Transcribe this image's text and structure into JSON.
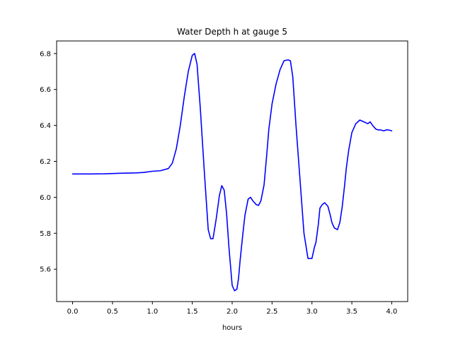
{
  "chart_data": {
    "type": "line",
    "title": "Water Depth h at gauge 5",
    "xlabel": "hours",
    "ylabel": "",
    "xlim": [
      -0.2,
      4.2
    ],
    "ylim": [
      5.42,
      6.87
    ],
    "xticks": [
      0.0,
      0.5,
      1.0,
      1.5,
      2.0,
      2.5,
      3.0,
      3.5,
      4.0
    ],
    "xtick_labels": [
      "0.0",
      "0.5",
      "1.0",
      "1.5",
      "2.0",
      "2.5",
      "3.0",
      "3.5",
      "4.0"
    ],
    "yticks": [
      5.6,
      5.8,
      6.0,
      6.2,
      6.4,
      6.6,
      6.8
    ],
    "ytick_labels": [
      "5.6",
      "5.8",
      "6.0",
      "6.2",
      "6.4",
      "6.6",
      "6.8"
    ],
    "grid": false,
    "legend": "none",
    "series": [
      {
        "color": "#0000ff",
        "x": [
          0.0,
          0.2,
          0.4,
          0.6,
          0.7,
          0.8,
          0.9,
          1.0,
          1.1,
          1.2,
          1.25,
          1.3,
          1.35,
          1.4,
          1.45,
          1.5,
          1.53,
          1.56,
          1.6,
          1.65,
          1.7,
          1.73,
          1.76,
          1.8,
          1.84,
          1.87,
          1.9,
          1.93,
          1.96,
          2.0,
          2.03,
          2.06,
          2.08,
          2.1,
          2.13,
          2.16,
          2.2,
          2.23,
          2.26,
          2.3,
          2.33,
          2.36,
          2.4,
          2.43,
          2.46,
          2.5,
          2.55,
          2.6,
          2.65,
          2.7,
          2.73,
          2.76,
          2.8,
          2.85,
          2.9,
          2.95,
          3.0,
          3.03,
          3.05,
          3.08,
          3.1,
          3.13,
          3.16,
          3.2,
          3.23,
          3.25,
          3.28,
          3.32,
          3.35,
          3.38,
          3.41,
          3.43,
          3.46,
          3.5,
          3.55,
          3.6,
          3.65,
          3.7,
          3.73,
          3.76,
          3.8,
          3.83,
          3.86,
          3.9,
          3.93,
          3.96,
          4.0
        ],
        "y": [
          6.13,
          6.13,
          6.131,
          6.134,
          6.135,
          6.136,
          6.139,
          6.145,
          6.148,
          6.16,
          6.19,
          6.27,
          6.4,
          6.56,
          6.7,
          6.79,
          6.8,
          6.74,
          6.5,
          6.15,
          5.82,
          5.77,
          5.77,
          5.88,
          6.01,
          6.065,
          6.04,
          5.91,
          5.72,
          5.51,
          5.48,
          5.49,
          5.55,
          5.65,
          5.78,
          5.9,
          5.99,
          6.0,
          5.98,
          5.96,
          5.955,
          5.98,
          6.07,
          6.22,
          6.38,
          6.52,
          6.63,
          6.71,
          6.76,
          6.765,
          6.76,
          6.67,
          6.4,
          6.1,
          5.8,
          5.66,
          5.66,
          5.72,
          5.75,
          5.85,
          5.94,
          5.96,
          5.97,
          5.95,
          5.9,
          5.86,
          5.83,
          5.82,
          5.86,
          5.95,
          6.07,
          6.16,
          6.26,
          6.36,
          6.41,
          6.43,
          6.42,
          6.41,
          6.42,
          6.4,
          6.38,
          6.375,
          6.375,
          6.37,
          6.375,
          6.375,
          6.37
        ]
      }
    ]
  }
}
